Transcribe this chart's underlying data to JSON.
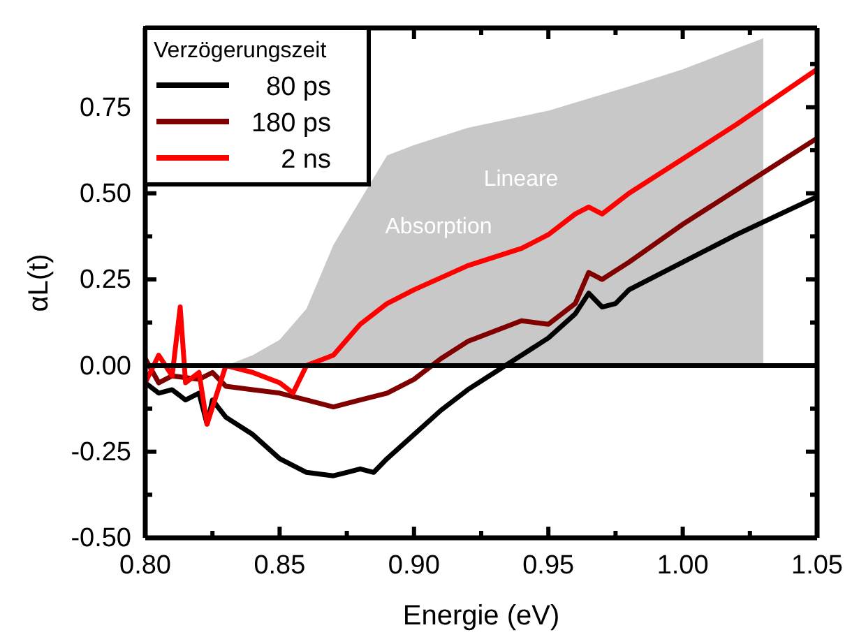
{
  "chart_data": {
    "type": "line",
    "xlabel": "Energie (eV)",
    "ylabel": "αL(t)",
    "legend_title": "Verzögerungszeit",
    "legend": "top left",
    "grid": false,
    "xlim": [
      0.8,
      1.05
    ],
    "ylim": [
      -0.5,
      0.98
    ],
    "xticks": [
      {
        "value": 0.8,
        "label": "0.80"
      },
      {
        "value": 0.825,
        "label": null
      },
      {
        "value": 0.85,
        "label": "0.85"
      },
      {
        "value": 0.875,
        "label": null
      },
      {
        "value": 0.9,
        "label": "0.90"
      },
      {
        "value": 0.925,
        "label": null
      },
      {
        "value": 0.95,
        "label": "0.95"
      },
      {
        "value": 0.975,
        "label": null
      },
      {
        "value": 1.0,
        "label": "1.00"
      },
      {
        "value": 1.025,
        "label": null
      },
      {
        "value": 1.05,
        "label": "1.05"
      }
    ],
    "yticks": [
      {
        "value": -0.5,
        "label": "-0.50"
      },
      {
        "value": -0.375,
        "label": null
      },
      {
        "value": -0.25,
        "label": "-0.25"
      },
      {
        "value": -0.125,
        "label": null
      },
      {
        "value": 0,
        "label": "0.00"
      },
      {
        "value": 0.125,
        "label": null
      },
      {
        "value": 0.25,
        "label": "0.25"
      },
      {
        "value": 0.375,
        "label": null
      },
      {
        "value": 0.5,
        "label": "0.50"
      },
      {
        "value": 0.625,
        "label": null
      },
      {
        "value": 0.75,
        "label": "0.75"
      },
      {
        "value": 0.875,
        "label": null
      }
    ],
    "ref_lines": [
      {
        "axis": "y",
        "value": 0,
        "color": "#000000"
      }
    ],
    "annotations": [
      "Lineare",
      "Absorption"
    ],
    "series": [
      {
        "type": "area",
        "color": "#c8c8c8",
        "x": [
          0.83,
          0.84,
          0.85,
          0.86,
          0.87,
          0.88,
          0.89,
          0.9,
          0.92,
          0.95,
          0.98,
          1.0,
          1.02,
          1.03
        ],
        "values": [
          0,
          0.03,
          0.075,
          0.165,
          0.35,
          null,
          0.61,
          0.64,
          0.69,
          0.74,
          0.81,
          0.86,
          0.92,
          0.95
        ]
      },
      {
        "name": "80 ps",
        "color": "#000000",
        "x": [
          0.8,
          0.805,
          0.81,
          0.815,
          0.82,
          0.823,
          0.825,
          0.83,
          0.84,
          0.85,
          0.86,
          0.87,
          0.875,
          0.88,
          0.885,
          0.89,
          0.9,
          0.91,
          0.92,
          0.93,
          0.94,
          0.95,
          0.96,
          0.965,
          0.97,
          0.975,
          0.98,
          1.0,
          1.02,
          1.05
        ],
        "values": [
          -0.05,
          -0.08,
          -0.07,
          -0.1,
          -0.08,
          -0.17,
          -0.1,
          -0.15,
          -0.2,
          -0.27,
          -0.31,
          -0.32,
          -0.31,
          -0.3,
          -0.31,
          -0.27,
          -0.2,
          -0.13,
          -0.07,
          -0.02,
          0.03,
          0.08,
          0.15,
          0.21,
          0.17,
          0.18,
          0.22,
          0.3,
          0.38,
          0.49
        ]
      },
      {
        "name": "180 ps",
        "color": "#800000",
        "x": [
          0.8,
          0.805,
          0.81,
          0.82,
          0.825,
          0.83,
          0.84,
          0.85,
          0.86,
          0.87,
          0.88,
          0.89,
          0.9,
          0.91,
          0.92,
          0.93,
          0.94,
          0.95,
          0.96,
          0.965,
          0.97,
          0.98,
          1.0,
          1.02,
          1.05
        ],
        "values": [
          0.02,
          -0.05,
          -0.03,
          -0.04,
          -0.02,
          -0.06,
          -0.07,
          -0.08,
          -0.1,
          -0.12,
          -0.1,
          -0.08,
          -0.04,
          0.02,
          0.07,
          0.1,
          0.13,
          0.12,
          0.18,
          0.27,
          0.25,
          0.3,
          0.41,
          0.51,
          0.66
        ]
      },
      {
        "name": "2 ns",
        "color": "#ff0000",
        "x": [
          0.8,
          0.805,
          0.81,
          0.813,
          0.815,
          0.82,
          0.823,
          0.83,
          0.84,
          0.85,
          0.855,
          0.86,
          0.87,
          0.88,
          0.89,
          0.9,
          0.92,
          0.94,
          0.95,
          0.96,
          0.965,
          0.97,
          0.98,
          1.0,
          1.02,
          1.05
        ],
        "values": [
          -0.05,
          0.03,
          -0.03,
          0.17,
          -0.05,
          -0.02,
          -0.17,
          0.0,
          -0.02,
          -0.05,
          -0.08,
          0.0,
          0.03,
          0.12,
          0.18,
          0.22,
          0.29,
          0.34,
          0.38,
          0.44,
          0.46,
          0.44,
          0.5,
          0.6,
          0.7,
          0.86
        ]
      }
    ]
  }
}
